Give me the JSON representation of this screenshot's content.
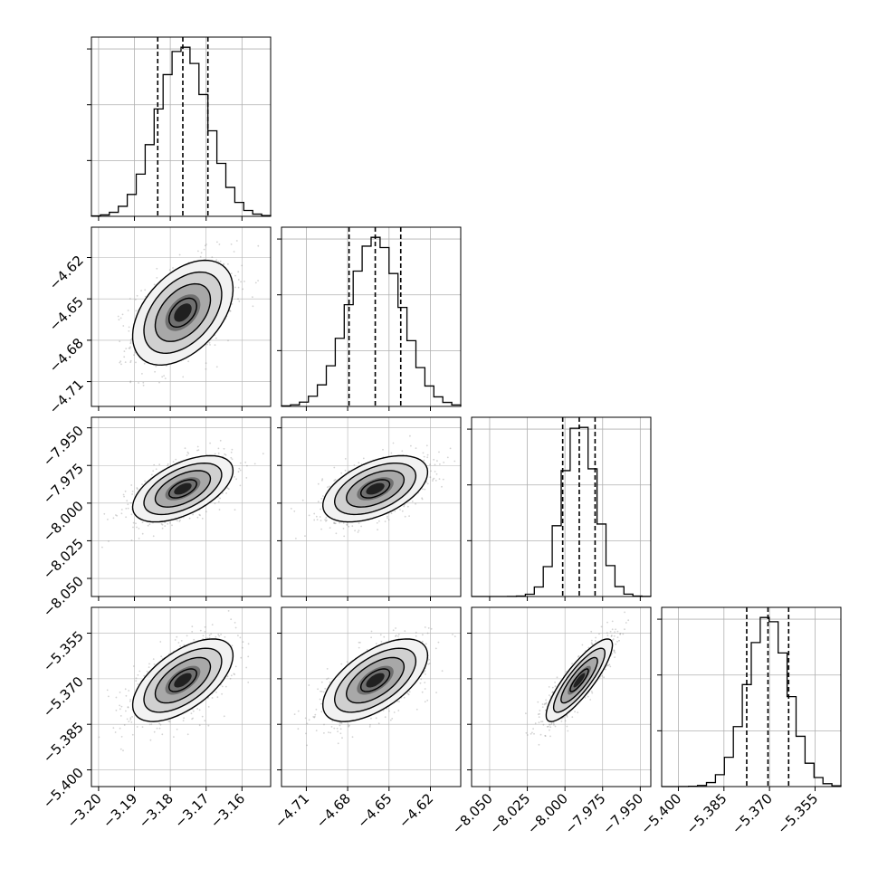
{
  "chart_data": {
    "type": "corner",
    "params": [
      {
        "id": "p1",
        "range": [
          -3.202,
          -3.152
        ],
        "ticks": [
          -3.2,
          -3.19,
          -3.18,
          -3.17,
          -3.16
        ],
        "tick_labels": [
          "−3.20",
          "−3.19",
          "−3.18",
          "−3.17",
          "−3.16"
        ],
        "quantiles": [
          -3.1835,
          -3.1765,
          -3.1695
        ],
        "mean": -3.1765,
        "sd": 0.007
      },
      {
        "id": "p2",
        "range": [
          -4.728,
          -4.598
        ],
        "ticks": [
          -4.71,
          -4.68,
          -4.65,
          -4.62
        ],
        "tick_labels": [
          "−4.71",
          "−4.68",
          "−4.65",
          "−4.62"
        ],
        "quantiles": [
          -4.679,
          -4.66,
          -4.6415
        ],
        "mean": -4.66,
        "sd": 0.019
      },
      {
        "id": "p3",
        "range": [
          -8.062,
          -7.943
        ],
        "ticks": [
          -8.05,
          -8.025,
          -8.0,
          -7.975,
          -7.95
        ],
        "tick_labels": [
          "−8.050",
          "−8.025",
          "−8.000",
          "−7.975",
          "−7.950"
        ],
        "quantiles": [
          -8.0015,
          -7.9905,
          -7.98
        ],
        "mean": -7.9905,
        "sd": 0.011
      },
      {
        "id": "p4",
        "range": [
          -5.4055,
          -5.3465
        ],
        "ticks": [
          -5.4,
          -5.385,
          -5.37,
          -5.355
        ],
        "tick_labels": [
          "−5.400",
          "−5.385",
          "−5.370",
          "−5.355"
        ],
        "quantiles": [
          -5.3775,
          -5.3705,
          -5.3637
        ],
        "mean": -5.3705,
        "sd": 0.0068
      }
    ],
    "correlations": {
      "1-0": 0.45,
      "2-0": 0.55,
      "2-1": 0.5,
      "3-0": 0.6,
      "3-1": 0.6,
      "3-2": 0.85
    },
    "grid": true,
    "colors": {
      "line": "#000000",
      "grid": "#b0b0b0",
      "scatter": "#808080"
    }
  }
}
